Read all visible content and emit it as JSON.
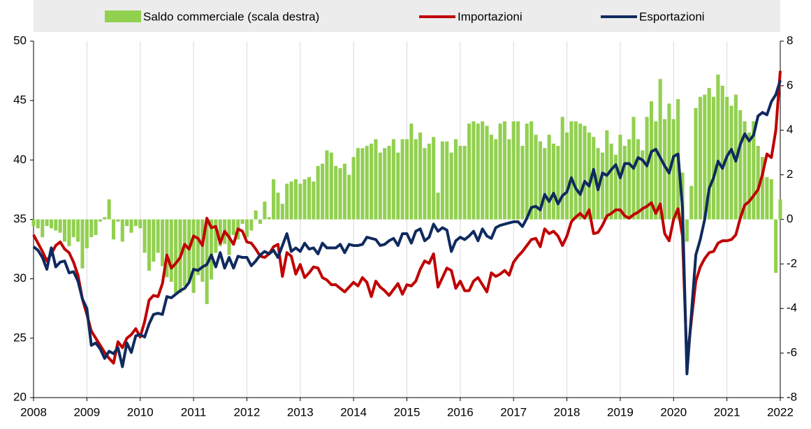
{
  "chart_data": {
    "type": "line",
    "categories": [
      "2008",
      null,
      null,
      null,
      null,
      null,
      null,
      null,
      null,
      null,
      null,
      null,
      "2009",
      null,
      null,
      null,
      null,
      null,
      null,
      null,
      null,
      null,
      null,
      null,
      "2010",
      null,
      null,
      null,
      null,
      null,
      null,
      null,
      null,
      null,
      null,
      null,
      "2011",
      null,
      null,
      null,
      null,
      null,
      null,
      null,
      null,
      null,
      null,
      null,
      "2012",
      null,
      null,
      null,
      null,
      null,
      null,
      null,
      null,
      null,
      null,
      null,
      "2013",
      null,
      null,
      null,
      null,
      null,
      null,
      null,
      null,
      null,
      null,
      null,
      "2014",
      null,
      null,
      null,
      null,
      null,
      null,
      null,
      null,
      null,
      null,
      null,
      "2015",
      null,
      null,
      null,
      null,
      null,
      null,
      null,
      null,
      null,
      null,
      null,
      "2016",
      null,
      null,
      null,
      null,
      null,
      null,
      null,
      null,
      null,
      null,
      null,
      "2017",
      null,
      null,
      null,
      null,
      null,
      null,
      null,
      null,
      null,
      null,
      null,
      "2018",
      null,
      null,
      null,
      null,
      null,
      null,
      null,
      null,
      null,
      null,
      null,
      "2019",
      null,
      null,
      null,
      null,
      null,
      null,
      null,
      null,
      null,
      null,
      null,
      "2020",
      null,
      null,
      null,
      null,
      null,
      null,
      null,
      null,
      null,
      null,
      null,
      "2021",
      null,
      null,
      null,
      null,
      null,
      null,
      null,
      null,
      null,
      null,
      null,
      "2022"
    ],
    "series": [
      {
        "name": "Saldo commerciale (scala destra)",
        "type": "bar",
        "axis": "y2",
        "color": "#92d050",
        "values": [
          -0.3,
          -0.4,
          -0.8,
          -0.3,
          -0.4,
          -0.5,
          -0.6,
          -1.0,
          -1.2,
          -0.8,
          -1.0,
          -2.2,
          -1.3,
          -0.8,
          -0.7,
          -0.1,
          0.1,
          0.9,
          -0.9,
          -0.1,
          -1.0,
          -0.3,
          -0.6,
          -0.3,
          -0.4,
          -1.5,
          -2.3,
          -1.9,
          -1.5,
          -2.1,
          -2.6,
          -2.8,
          -3.3,
          -3.3,
          -3.0,
          -2.8,
          -3.3,
          -2.5,
          -2.8,
          -3.8,
          -2.7,
          -1.5,
          -1.2,
          -1.1,
          -1.6,
          -0.7,
          -0.9,
          -0.2,
          -0.8,
          -0.5,
          0.4,
          -0.2,
          0.8,
          0.1,
          1.8,
          1.2,
          0.7,
          1.6,
          1.7,
          1.8,
          1.6,
          1.8,
          1.9,
          1.7,
          2.4,
          2.5,
          3.1,
          3.0,
          2.4,
          2.3,
          2.5,
          2.0,
          2.8,
          3.2,
          3.2,
          3.3,
          3.4,
          3.6,
          3.0,
          3.2,
          3.3,
          3.6,
          3.0,
          3.6,
          3.6,
          4.3,
          3.6,
          3.9,
          3.2,
          3.4,
          3.7,
          1.2,
          3.5,
          3.5,
          3.0,
          3.6,
          3.3,
          3.3,
          4.3,
          4.4,
          4.3,
          4.4,
          4.2,
          3.8,
          3.6,
          4.3,
          4.4,
          3.6,
          4.4,
          4.4,
          3.3,
          4.3,
          4.4,
          3.8,
          3.5,
          3.2,
          3.8,
          3.4,
          3.3,
          4.6,
          3.9,
          4.4,
          4.4,
          4.3,
          4.2,
          3.9,
          3.7,
          3.2,
          3.0,
          4.0,
          3.4,
          2.9,
          3.8,
          3.3,
          3.6,
          4.6,
          3.6,
          3.1,
          4.6,
          5.3,
          4.4,
          6.3,
          4.5,
          5.2,
          4.5,
          5.4,
          2.1,
          -1.0,
          1.5,
          5.0,
          5.5,
          5.6,
          5.9,
          5.5,
          6.5,
          6.0,
          5.5,
          5.1,
          5.6,
          4.9,
          4.4,
          3.9,
          4.4,
          3.3,
          2.8,
          1.9,
          1.8,
          -2.4,
          0.9
        ]
      },
      {
        "name": "Importazioni",
        "type": "line",
        "color": "#c00000",
        "values": [
          33.7,
          33.0,
          32.3,
          31.5,
          32.1,
          32.8,
          33.1,
          32.5,
          32.2,
          31.4,
          30.3,
          28.3,
          27.0,
          25.6,
          25.0,
          24.4,
          23.8,
          23.3,
          22.9,
          24.7,
          24.2,
          25.0,
          25.3,
          25.8,
          25.1,
          26.4,
          28.2,
          28.6,
          28.5,
          29.6,
          32.0,
          30.9,
          31.3,
          31.8,
          32.9,
          32.5,
          33.6,
          33.4,
          32.8,
          35.1,
          34.3,
          34.4,
          33.0,
          34.0,
          33.5,
          32.9,
          34.2,
          34.0,
          33.1,
          33.0,
          32.5,
          31.9,
          31.8,
          32.1,
          32.7,
          32.9,
          30.2,
          32.2,
          31.9,
          30.4,
          31.2,
          30.1,
          30.5,
          31.0,
          30.9,
          30.1,
          29.9,
          29.5,
          29.5,
          29.2,
          28.9,
          29.3,
          29.7,
          29.4,
          30.1,
          29.7,
          28.5,
          29.8,
          29.3,
          29.0,
          28.6,
          29.1,
          29.6,
          28.7,
          29.5,
          29.4,
          29.8,
          30.8,
          31.5,
          31.3,
          32.1,
          29.3,
          30.1,
          30.9,
          30.7,
          29.2,
          29.8,
          29.0,
          29.0,
          29.8,
          30.1,
          29.5,
          28.9,
          30.5,
          30.2,
          30.4,
          30.7,
          30.3,
          31.4,
          31.9,
          32.3,
          32.8,
          33.3,
          33.4,
          32.7,
          34.2,
          33.8,
          34.0,
          33.6,
          32.8,
          33.6,
          34.8,
          35.2,
          35.5,
          35.1,
          35.8,
          33.8,
          33.9,
          34.5,
          35.3,
          35.5,
          35.8,
          35.8,
          35.3,
          35.1,
          35.4,
          35.6,
          35.9,
          36.1,
          36.4,
          35.5,
          36.3,
          33.8,
          33.2,
          35.0,
          35.9,
          33.6,
          23.0,
          26.5,
          29.8,
          31.0,
          31.7,
          32.2,
          32.3,
          33.0,
          33.2,
          33.2,
          33.3,
          33.7,
          35.1,
          36.2,
          36.5,
          37.0,
          37.5,
          38.8,
          40.5,
          40.2,
          42.5,
          47.5
        ]
      },
      {
        "name": "Esportazioni",
        "type": "line",
        "color": "#0f2a5e",
        "values": [
          32.7,
          32.4,
          31.8,
          30.8,
          32.6,
          31.0,
          31.4,
          31.5,
          30.5,
          30.6,
          29.8,
          28.3,
          27.5,
          24.4,
          24.6,
          24.1,
          23.3,
          23.9,
          23.7,
          24.2,
          22.6,
          24.6,
          23.8,
          25.2,
          25.3,
          25.1,
          26.2,
          27.0,
          27.1,
          27.0,
          28.5,
          28.4,
          28.7,
          29.0,
          29.2,
          29.7,
          30.8,
          30.7,
          31.0,
          31.2,
          32.0,
          31.0,
          32.2,
          30.9,
          31.8,
          30.9,
          31.9,
          31.8,
          31.8,
          31.1,
          31.5,
          32.0,
          32.3,
          32.1,
          32.4,
          31.8,
          32.8,
          33.8,
          32.3,
          32.6,
          32.3,
          33.0,
          32.5,
          32.6,
          32.1,
          33.0,
          32.6,
          32.6,
          32.6,
          32.9,
          32.2,
          32.9,
          32.8,
          32.8,
          32.9,
          33.5,
          33.4,
          33.3,
          32.8,
          32.9,
          33.2,
          33.4,
          32.8,
          33.8,
          33.8,
          33.0,
          34.0,
          34.2,
          33.2,
          33.5,
          34.6,
          34.0,
          34.3,
          34.1,
          32.3,
          33.2,
          33.5,
          33.3,
          33.6,
          34.0,
          33.2,
          34.2,
          33.6,
          33.4,
          34.3,
          34.5,
          34.6,
          34.7,
          34.8,
          34.8,
          34.4,
          35.1,
          36.0,
          36.1,
          35.8,
          37.1,
          36.5,
          37.2,
          36.3,
          37.0,
          37.3,
          38.5,
          37.6,
          37.1,
          38.2,
          37.8,
          39.2,
          37.5,
          38.9,
          38.7,
          39.2,
          39.6,
          38.5,
          39.7,
          39.7,
          39.3,
          40.2,
          40.0,
          39.5,
          40.7,
          40.9,
          40.2,
          39.5,
          38.9,
          40.3,
          40.5,
          36.0,
          22.0,
          27.0,
          32.0,
          33.3,
          35.0,
          37.6,
          38.5,
          39.9,
          39.3,
          40.3,
          40.9,
          39.9,
          41.3,
          42.2,
          41.6,
          42.1,
          43.7,
          44.0,
          43.8,
          44.9,
          45.5,
          46.7
        ]
      }
    ],
    "ylim": [
      20,
      50
    ],
    "yticks": [
      20,
      25,
      30,
      35,
      40,
      45,
      50
    ],
    "y2lim": [
      -8,
      8
    ],
    "y2ticks": [
      -8,
      -6,
      -4,
      -2,
      0,
      2,
      4,
      6,
      8
    ],
    "grid": true,
    "legend": "top"
  }
}
